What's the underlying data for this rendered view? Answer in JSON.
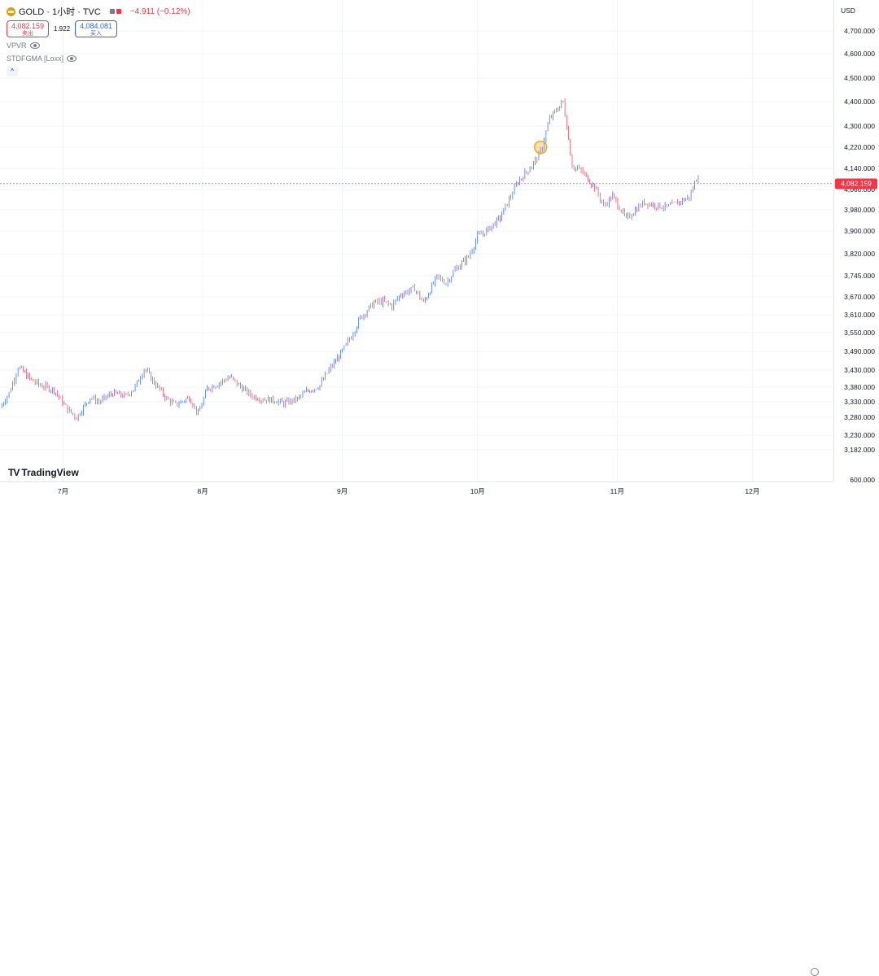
{
  "legend": {
    "title": "GOLD · 1小时 · TVC",
    "change": "−4.911 (−0.12%)",
    "sell_price": "4,082.159",
    "sell_label": "卖出",
    "spread": "1.922",
    "buy_price": "4,084.081",
    "buy_label": "买入",
    "indicators": [
      "VPVR",
      "STDFGMA [Loxx]"
    ],
    "collapse_glyph": "^"
  },
  "brand": {
    "mark": "TV",
    "name": "TradingView"
  },
  "colors": {
    "up": "#2962ff",
    "down": "#f23645",
    "accent": "#f23645",
    "highlight": "#f5a623"
  },
  "chart_data": {
    "type": "line",
    "title": "",
    "currency": "USD",
    "last_price": 4082.159,
    "last_price_label": "4,082.159",
    "y_ticks": [
      "4,700.000",
      "4,600.000",
      "4,500.000",
      "4,400.000",
      "4,300.000",
      "4,220.000",
      "4,140.000",
      "4,060.000",
      "3,980.000",
      "3,900.000",
      "3,820.000",
      "3,745.000",
      "3,670.000",
      "3,610.000",
      "3,550.000",
      "3,490.000",
      "3,430.000",
      "3,380.000",
      "3,330.000",
      "3,280.000",
      "3,230.000",
      "3,182.000"
    ],
    "y_tick_values": [
      4700,
      4600,
      4500,
      4400,
      4300,
      4220,
      4140,
      4060,
      3980,
      3900,
      3820,
      3745,
      3670,
      3610,
      3550,
      3490,
      3430,
      3380,
      3330,
      3280,
      3230,
      3182
    ],
    "volume_tick": "600.000",
    "x_ticks": [
      "7月",
      "8月",
      "9月",
      "10月",
      "11月",
      "12月"
    ],
    "x_tick_dates": [
      "2025-07-01",
      "2025-08-01",
      "2025-09-01",
      "2025-10-01",
      "2025-11-01",
      "2025-12-01"
    ],
    "x_range": [
      "2025-06-17",
      "2025-12-19"
    ],
    "series": [
      {
        "x": [
          "2025-06-17",
          "2025-06-19",
          "2025-06-21",
          "2025-06-24",
          "2025-06-26",
          "2025-06-29",
          "2025-07-02",
          "2025-07-04",
          "2025-07-07",
          "2025-07-09",
          "2025-07-12",
          "2025-07-15",
          "2025-07-17",
          "2025-07-19",
          "2025-07-22",
          "2025-07-24",
          "2025-07-26",
          "2025-07-29",
          "2025-07-31",
          "2025-08-02",
          "2025-08-05",
          "2025-08-07",
          "2025-08-09",
          "2025-08-12",
          "2025-08-14",
          "2025-08-17",
          "2025-08-19",
          "2025-08-22",
          "2025-08-24",
          "2025-08-27",
          "2025-08-29",
          "2025-09-01",
          "2025-09-03",
          "2025-09-05",
          "2025-09-08",
          "2025-09-10",
          "2025-09-12",
          "2025-09-14",
          "2025-09-17",
          "2025-09-19",
          "2025-09-22",
          "2025-09-24",
          "2025-09-26",
          "2025-09-29",
          "2025-10-01",
          "2025-10-03",
          "2025-10-06",
          "2025-10-08",
          "2025-10-10",
          "2025-10-13",
          "2025-10-15",
          "2025-10-17",
          "2025-10-20",
          "2025-10-22",
          "2025-10-24",
          "2025-10-27",
          "2025-10-29",
          "2025-10-31",
          "2025-11-03",
          "2025-11-05",
          "2025-11-07",
          "2025-11-09",
          "2025-11-12",
          "2025-11-14",
          "2025-11-17",
          "2025-11-19"
        ],
        "values": [
          3310,
          3360,
          3440,
          3400,
          3385,
          3370,
          3305,
          3280,
          3345,
          3330,
          3360,
          3350,
          3380,
          3435,
          3380,
          3340,
          3320,
          3345,
          3290,
          3375,
          3395,
          3410,
          3385,
          3350,
          3340,
          3335,
          3325,
          3340,
          3365,
          3385,
          3430,
          3490,
          3540,
          3600,
          3650,
          3655,
          3640,
          3680,
          3700,
          3650,
          3740,
          3720,
          3765,
          3810,
          3880,
          3900,
          3950,
          4020,
          4090,
          4150,
          4200,
          4330,
          4400,
          4150,
          4130,
          4070,
          3995,
          4035,
          3945,
          3980,
          4010,
          4000,
          3990,
          4005,
          4030,
          4120
        ]
      }
    ],
    "annotations": [
      {
        "x": "2025-10-15",
        "y": 4220,
        "type": "circle-marker"
      }
    ],
    "grid": true,
    "legend": "top-left"
  }
}
